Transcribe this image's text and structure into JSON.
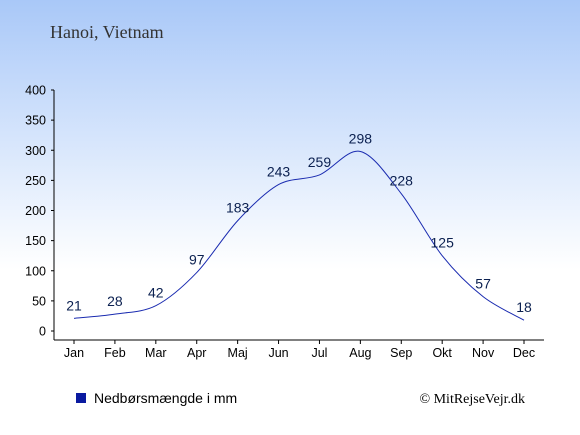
{
  "title": "Hanoi, Vietnam",
  "chart_data": {
    "type": "line",
    "categories": [
      "Jan",
      "Feb",
      "Mar",
      "Apr",
      "Maj",
      "Jun",
      "Jul",
      "Aug",
      "Sep",
      "Okt",
      "Nov",
      "Dec"
    ],
    "series": [
      {
        "name": "Nedbørsmængde i mm",
        "values": [
          21,
          28,
          42,
          97,
          183,
          243,
          259,
          298,
          228,
          125,
          57,
          18
        ]
      }
    ],
    "ylim": [
      0,
      400
    ],
    "yticks": [
      0,
      50,
      100,
      150,
      200,
      250,
      300,
      350,
      400
    ],
    "grid": false,
    "legend_position": "bottom-left",
    "data_labels": true
  },
  "legend": {
    "label": "Nedbørsmængde i mm"
  },
  "credit": "© MitRejseVejr.dk",
  "colors": {
    "background_top": "#a9c8f8",
    "background_bottom": "#ffffff",
    "line": "#1a2bb0",
    "legend_marker": "#0a1aa0",
    "data_label": "#0b2050"
  }
}
